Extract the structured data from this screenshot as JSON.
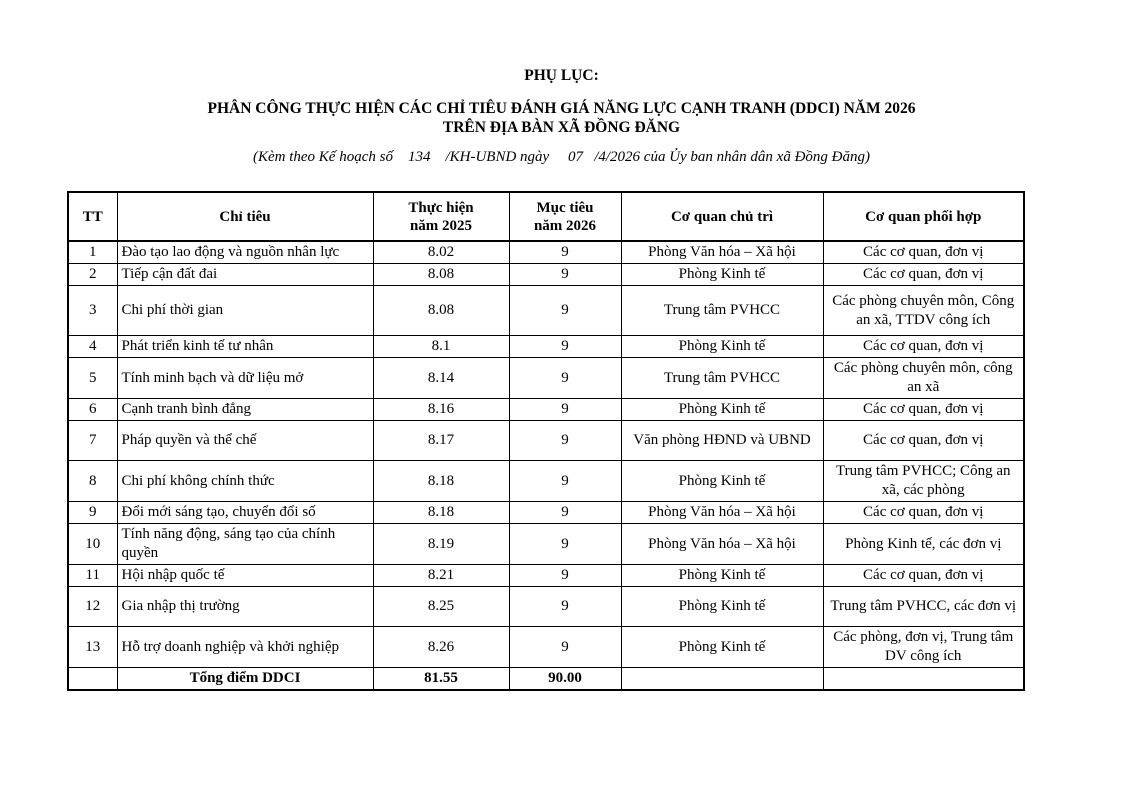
{
  "page": {
    "heading": "PHỤ LỤC:",
    "title_line1": "PHÂN CÔNG THỰC HIỆN CÁC CHỈ TIÊU ĐÁNH GIÁ NĂNG LỰC CẠNH TRANH (DDCI) NĂM 2026",
    "title_line2": "TRÊN ĐỊA BÀN XÃ ĐỒNG ĐĂNG",
    "subtitle": "(Kèm theo Kế hoạch số    134    /KH-UBND ngày     07   /4/2026 của Ủy ban nhân dân xã Đồng Đăng)"
  },
  "table": {
    "columns": {
      "tt": "TT",
      "chi_tieu": "Chỉ tiêu",
      "thuc_hien": "Thực hiện\nnăm 2025",
      "muc_tieu": "Mục tiêu\nnăm 2026",
      "chu_tri": "Cơ quan chủ trì",
      "phoi_hop": "Cơ quan phối hợp"
    },
    "rows": [
      {
        "tt": "1",
        "chi_tieu": "Đào tạo lao động và nguồn nhân lực",
        "thuc_hien": "8.02",
        "muc_tieu": "9",
        "chu_tri": "Phòng Văn hóa – Xã hội",
        "phoi_hop": "Các cơ quan, đơn vị"
      },
      {
        "tt": "2",
        "chi_tieu": "Tiếp cận đất đai",
        "thuc_hien": "8.08",
        "muc_tieu": "9",
        "chu_tri": "Phòng Kinh tế",
        "phoi_hop": "Các cơ quan, đơn vị"
      },
      {
        "tt": "3",
        "chi_tieu": "Chi phí thời gian",
        "thuc_hien": "8.08",
        "muc_tieu": "9",
        "chu_tri": "Trung tâm PVHCC",
        "phoi_hop": "Các phòng chuyên môn, Công an xã, TTDV công ích"
      },
      {
        "tt": "4",
        "chi_tieu": "Phát triển kinh tế tư nhân",
        "thuc_hien": "8.1",
        "muc_tieu": "9",
        "chu_tri": "Phòng Kinh tế",
        "phoi_hop": "Các cơ quan, đơn vị"
      },
      {
        "tt": "5",
        "chi_tieu": "Tính minh bạch và dữ liệu mở",
        "thuc_hien": "8.14",
        "muc_tieu": "9",
        "chu_tri": "Trung tâm PVHCC",
        "phoi_hop": "Các phòng chuyên môn, công an xã"
      },
      {
        "tt": "6",
        "chi_tieu": "Cạnh tranh bình đẳng",
        "thuc_hien": "8.16",
        "muc_tieu": "9",
        "chu_tri": "Phòng Kinh tế",
        "phoi_hop": "Các cơ quan, đơn vị"
      },
      {
        "tt": "7",
        "chi_tieu": "Pháp quyền và thể chế",
        "thuc_hien": "8.17",
        "muc_tieu": "9",
        "chu_tri": "Văn phòng HĐND và UBND",
        "phoi_hop": "Các cơ quan, đơn vị"
      },
      {
        "tt": "8",
        "chi_tieu": "Chi phí không chính thức",
        "thuc_hien": "8.18",
        "muc_tieu": "9",
        "chu_tri": "Phòng Kinh tế",
        "phoi_hop": "Trung tâm PVHCC; Công an xã, các phòng"
      },
      {
        "tt": "9",
        "chi_tieu": "Đổi mới sáng tạo, chuyển đổi số",
        "thuc_hien": "8.18",
        "muc_tieu": "9",
        "chu_tri": "Phòng Văn hóa – Xã hội",
        "phoi_hop": "Các cơ quan, đơn vị"
      },
      {
        "tt": "10",
        "chi_tieu": "Tính năng động, sáng tạo của chính quyền",
        "thuc_hien": "8.19",
        "muc_tieu": "9",
        "chu_tri": "Phòng Văn hóa – Xã hội",
        "phoi_hop": "Phòng Kinh tế, các đơn vị"
      },
      {
        "tt": "11",
        "chi_tieu": "Hội nhập quốc tế",
        "thuc_hien": "8.21",
        "muc_tieu": "9",
        "chu_tri": "Phòng Kinh tế",
        "phoi_hop": "Các cơ quan, đơn vị"
      },
      {
        "tt": "12",
        "chi_tieu": "Gia nhập thị trường",
        "thuc_hien": "8.25",
        "muc_tieu": "9",
        "chu_tri": "Phòng Kinh tế",
        "phoi_hop": "Trung tâm PVHCC, các đơn vị"
      },
      {
        "tt": "13",
        "chi_tieu": "Hỗ trợ doanh nghiệp và khởi nghiệp",
        "thuc_hien": "8.26",
        "muc_tieu": "9",
        "chu_tri": "Phòng Kinh tế",
        "phoi_hop": "Các phòng, đơn vị, Trung tâm DV công ích"
      }
    ],
    "total": {
      "tt": "",
      "label": "Tổng điểm DDCI",
      "thuc_hien": "81.55",
      "muc_tieu": "90.00",
      "chu_tri": "",
      "phoi_hop": ""
    }
  }
}
